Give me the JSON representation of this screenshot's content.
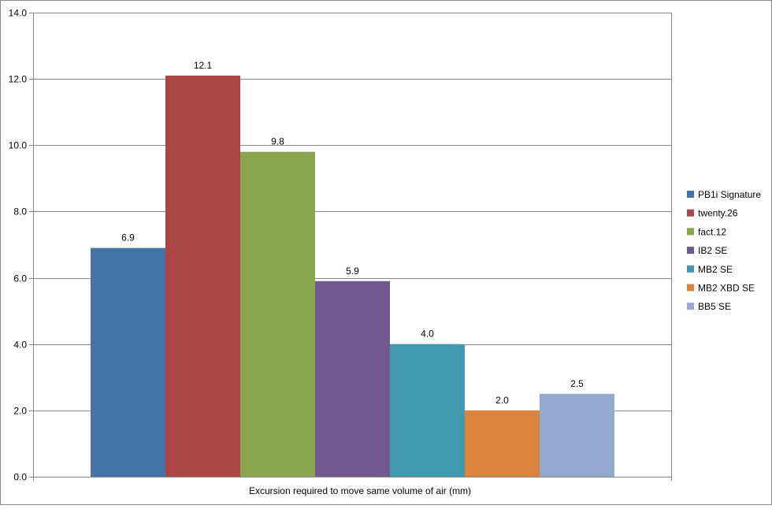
{
  "chart_data": {
    "type": "bar",
    "title": "",
    "xlabel": "Excursion required to move same volume of air (mm)",
    "ylabel": "",
    "ylim": [
      0,
      14
    ],
    "y_ticks": [
      "0.0",
      "2.0",
      "4.0",
      "6.0",
      "8.0",
      "10.0",
      "12.0",
      "14.0"
    ],
    "grid": true,
    "legend_position": "right",
    "series": [
      {
        "name": "PB1i Signature",
        "value": 6.9,
        "label": "6.9",
        "color": "#4572a7"
      },
      {
        "name": "twenty.26",
        "value": 12.1,
        "label": "12.1",
        "color": "#aa4643"
      },
      {
        "name": "fact.12",
        "value": 9.8,
        "label": "9.8",
        "color": "#89a54e"
      },
      {
        "name": "IB2 SE",
        "value": 5.9,
        "label": "5.9",
        "color": "#71588f"
      },
      {
        "name": "MB2 SE",
        "value": 4.0,
        "label": "4.0",
        "color": "#4198af"
      },
      {
        "name": "MB2 XBD SE",
        "value": 2.0,
        "label": "2.0",
        "color": "#db843d"
      },
      {
        "name": "BB5 SE",
        "value": 2.5,
        "label": "2.5",
        "color": "#93a9cf"
      }
    ]
  }
}
